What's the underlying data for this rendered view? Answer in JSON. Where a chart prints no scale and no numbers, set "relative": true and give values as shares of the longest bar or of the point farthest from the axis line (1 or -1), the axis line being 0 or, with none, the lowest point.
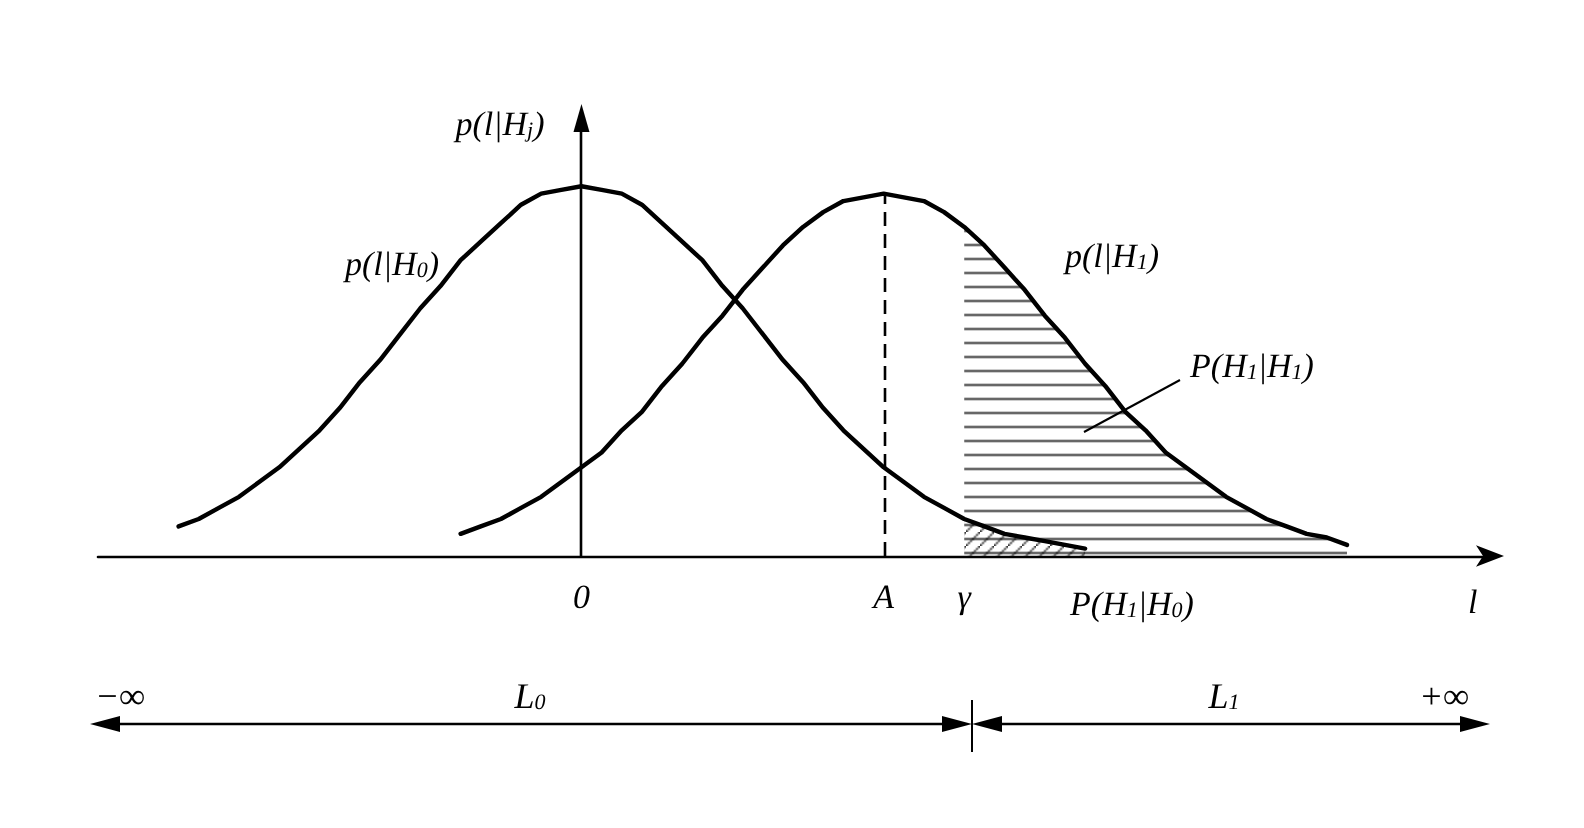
{
  "chart_data": {
    "type": "line",
    "relative": true,
    "xlabel": "l",
    "ylabel": "p(l|H$_{j}$)",
    "categories": [
      null,
      null,
      null,
      null,
      null,
      null,
      null,
      null,
      null,
      null,
      null,
      null,
      null,
      null,
      null,
      null,
      null,
      null,
      null,
      null,
      null,
      null,
      null,
      null,
      "0",
      null,
      null,
      null,
      null,
      null,
      null,
      null,
      null,
      null,
      null,
      null,
      null,
      null,
      null,
      "A",
      null,
      null,
      null,
      "γ",
      null,
      null,
      null,
      null,
      null,
      null,
      null,
      null,
      null,
      null,
      null,
      null,
      null,
      null,
      null,
      null,
      null,
      null,
      null,
      null,
      null,
      null,
      null,
      null,
      null,
      null
    ],
    "series": [
      {
        "name": "p(l|H$_{0}$)",
        "color": "#000000",
        "values": [
          null,
          null,
          null,
          null,
          0.08,
          0.1,
          0.13,
          0.16,
          0.2,
          0.24,
          0.29,
          0.34,
          0.4,
          0.47,
          0.53,
          0.6,
          0.67,
          0.73,
          0.8,
          0.85,
          0.9,
          0.95,
          0.98,
          0.99,
          1,
          0.99,
          0.98,
          0.95,
          0.9,
          0.85,
          0.8,
          0.73,
          0.67,
          0.6,
          0.53,
          0.47,
          0.4,
          0.34,
          0.29,
          0.24,
          0.2,
          0.16,
          0.13,
          0.1,
          0.08,
          0.06,
          0.05,
          0.04,
          0.03,
          0.02,
          null,
          null,
          null,
          null,
          null,
          null,
          null,
          null,
          null,
          null,
          null,
          null,
          null,
          null,
          null,
          null,
          null,
          null,
          null,
          null
        ]
      },
      {
        "name": "p(l|H$_{1}$)",
        "color": "#000000",
        "values": [
          null,
          null,
          null,
          null,
          null,
          null,
          null,
          null,
          null,
          null,
          null,
          null,
          null,
          null,
          null,
          null,
          null,
          null,
          0.06,
          0.08,
          0.1,
          0.13,
          0.16,
          0.2,
          0.24,
          0.28,
          0.34,
          0.39,
          0.46,
          0.52,
          0.59,
          0.65,
          0.72,
          0.78,
          0.84,
          0.89,
          0.93,
          0.96,
          0.97,
          0.98,
          0.97,
          0.96,
          0.93,
          0.89,
          0.84,
          0.78,
          0.72,
          0.65,
          0.59,
          0.52,
          0.46,
          0.39,
          0.34,
          0.28,
          0.24,
          0.2,
          0.16,
          0.13,
          0.1,
          0.08,
          0.06,
          0.05,
          0.03,
          null,
          null,
          null,
          null,
          null,
          null,
          null
        ]
      },
      {
        "type": "area",
        "name": "P(H$_{1}$|H$_{1}$)",
        "color": "#000000",
        "values": [
          null,
          null,
          null,
          null,
          null,
          null,
          null,
          null,
          null,
          null,
          null,
          null,
          null,
          null,
          null,
          null,
          null,
          null,
          null,
          null,
          null,
          null,
          null,
          null,
          null,
          null,
          null,
          null,
          null,
          null,
          null,
          null,
          null,
          null,
          null,
          null,
          null,
          null,
          null,
          null,
          null,
          null,
          null,
          0.89,
          0.84,
          0.78,
          0.72,
          0.65,
          0.59,
          0.52,
          0.46,
          0.39,
          0.34,
          0.28,
          0.24,
          0.2,
          0.16,
          0.13,
          0.1,
          0.08,
          0.06,
          0.05,
          0.03,
          null,
          null,
          null,
          null,
          null,
          null,
          null
        ]
      },
      {
        "type": "area",
        "name": "P(H$_{1}$|H$_{0}$)",
        "color": "#000000",
        "values": [
          null,
          null,
          null,
          null,
          null,
          null,
          null,
          null,
          null,
          null,
          null,
          null,
          null,
          null,
          null,
          null,
          null,
          null,
          null,
          null,
          null,
          null,
          null,
          null,
          null,
          null,
          null,
          null,
          null,
          null,
          null,
          null,
          null,
          null,
          null,
          null,
          null,
          null,
          null,
          null,
          null,
          null,
          null,
          0.1,
          0.08,
          0.06,
          0.05,
          0.04,
          0.03,
          0.02,
          null,
          null,
          null,
          null,
          null,
          null,
          null,
          null,
          null,
          null,
          null,
          null,
          null,
          null,
          null,
          null,
          null,
          null,
          null,
          null
        ]
      }
    ],
    "ref_lines": [
      {
        "axis": "x",
        "value": "0",
        "line_style": "solid"
      },
      {
        "axis": "x",
        "value": "A",
        "line_style": "dashed"
      }
    ],
    "annotations": [
      "−∞",
      "L$_{0}$",
      "L$_{1}$",
      "+∞"
    ],
    "marker": "none",
    "line_style": "solid",
    "grid": false,
    "legend": false
  }
}
